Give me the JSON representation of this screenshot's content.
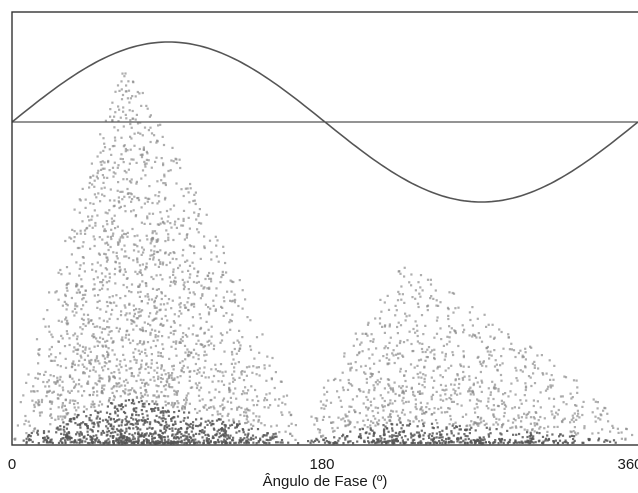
{
  "chart_data": {
    "type": "scatter",
    "title": "",
    "xlabel": "Ângulo de Fase (º)",
    "ylabel": "",
    "xlim": [
      0,
      360
    ],
    "x_ticks": [
      "0",
      "180",
      "360"
    ],
    "grid": false,
    "legend": "none",
    "reference_wave": {
      "shape": "sine",
      "period_degrees": 360,
      "peak_at_degrees": 90,
      "trough_at_degrees": 270,
      "zero_crossings_degrees": [
        0,
        180,
        360
      ]
    },
    "pattern_series": {
      "name": "",
      "clusters": [
        {
          "phase_start": 0,
          "phase_peak": 65,
          "phase_end": 165,
          "relative_max_amplitude": 0.88
        },
        {
          "phase_start": 165,
          "phase_peak": 225,
          "phase_end": 360,
          "relative_max_amplitude": 0.42
        }
      ]
    },
    "colors": {
      "points": "#8c8c8c",
      "dense_band": "#555555",
      "wave": "#555555",
      "frame": "#333333"
    }
  }
}
